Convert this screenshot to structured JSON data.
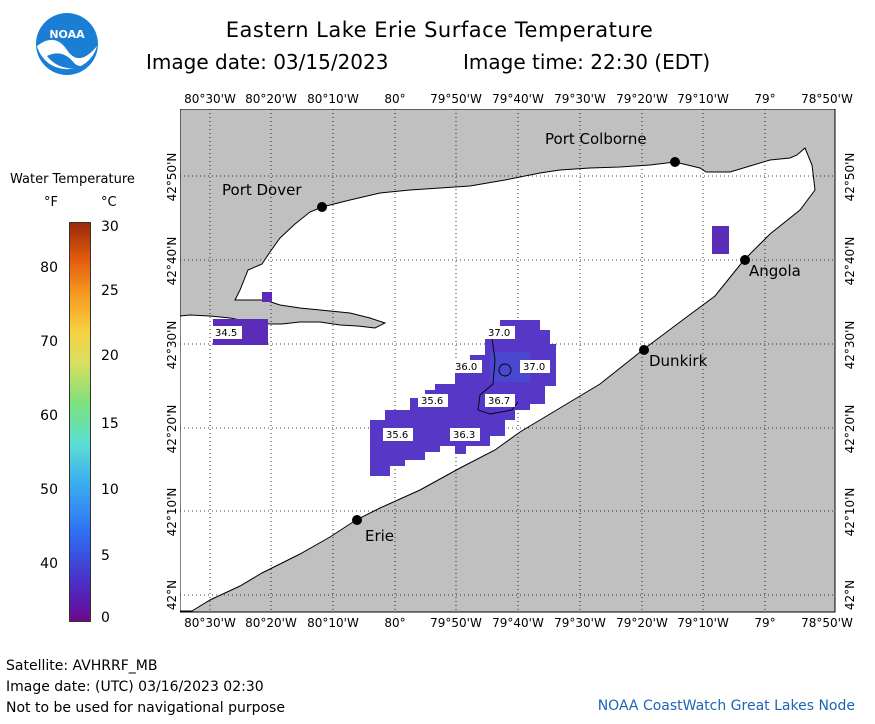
{
  "header": {
    "title": "Eastern Lake Erie Surface Temperature",
    "image_date_label": "Image date: 03/15/2023",
    "image_time_label": "Image time: 22:30 (EDT)",
    "logo_text": "NOAA"
  },
  "map": {
    "lon_labels": [
      "80°30'W",
      "80°20'W",
      "80°10'W",
      "80°",
      "79°50'W",
      "79°40'W",
      "79°30'W",
      "79°20'W",
      "79°10'W",
      "79°",
      "78°50'W"
    ],
    "lat_labels": [
      "42°N",
      "42°10'N",
      "42°20'N",
      "42°30'N",
      "42°40'N",
      "42°50'N"
    ],
    "cities": [
      {
        "name": "Port Colborne"
      },
      {
        "name": "Port Dover"
      },
      {
        "name": "Angola"
      },
      {
        "name": "Dunkirk"
      },
      {
        "name": "Erie"
      }
    ],
    "temperature_labels": [
      "34.5",
      "37.0",
      "36.0",
      "37.0",
      "35.6",
      "36.7",
      "35.6",
      "36.3"
    ]
  },
  "legend": {
    "title": "Water Temperature",
    "unit_f": "°F",
    "unit_c": "°C",
    "f_ticks": [
      "80",
      "70",
      "60",
      "50",
      "40"
    ],
    "c_ticks": [
      "30",
      "25",
      "20",
      "15",
      "10",
      "5",
      "0"
    ]
  },
  "footer": {
    "satellite": "Satellite: AVHRRF_MB",
    "utc_date": "Image date: (UTC) 03/16/2023  02:30",
    "disclaimer": "Not to be used for navigational purpose",
    "credit": "NOAA CoastWatch Great Lakes Node"
  }
}
